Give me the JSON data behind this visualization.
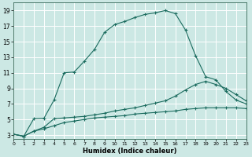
{
  "xlabel": "Humidex (Indice chaleur)",
  "bg_color": "#cce8e4",
  "grid_color": "#ffffff",
  "line_color": "#1a6b5e",
  "x_ticks": [
    0,
    1,
    2,
    3,
    4,
    5,
    6,
    7,
    8,
    9,
    10,
    11,
    12,
    13,
    14,
    15,
    16,
    17,
    18,
    19,
    20,
    21,
    22,
    23
  ],
  "y_ticks": [
    3,
    5,
    7,
    9,
    11,
    13,
    15,
    17,
    19
  ],
  "xlim": [
    0,
    23
  ],
  "ylim": [
    2.5,
    20.0
  ],
  "curve1_x": [
    0,
    1,
    2,
    3,
    4,
    5,
    6,
    7,
    8,
    9,
    10,
    11,
    12,
    13,
    14,
    15,
    16,
    17,
    18,
    19,
    20,
    21,
    22,
    23
  ],
  "curve1_y": [
    3.1,
    2.85,
    5.1,
    5.15,
    7.5,
    11.0,
    11.1,
    12.5,
    14.0,
    16.2,
    17.2,
    17.6,
    18.1,
    18.5,
    18.7,
    19.0,
    18.6,
    16.5,
    13.2,
    10.5,
    10.1,
    8.6,
    7.5,
    7.0
  ],
  "curve2_x": [
    0,
    1,
    2,
    3,
    4,
    5,
    6,
    7,
    8,
    9,
    10,
    11,
    12,
    13,
    14,
    15,
    16,
    17,
    18,
    19,
    20,
    21,
    22,
    23
  ],
  "curve2_y": [
    3.1,
    2.85,
    3.5,
    4.0,
    5.1,
    5.2,
    5.3,
    5.4,
    5.6,
    5.8,
    6.1,
    6.3,
    6.5,
    6.8,
    7.1,
    7.4,
    8.0,
    8.8,
    9.5,
    9.9,
    9.5,
    9.0,
    8.2,
    7.4
  ],
  "curve3_x": [
    0,
    1,
    2,
    3,
    4,
    5,
    6,
    7,
    8,
    9,
    10,
    11,
    12,
    13,
    14,
    15,
    16,
    17,
    18,
    19,
    20,
    21,
    22,
    23
  ],
  "curve3_y": [
    3.1,
    2.85,
    3.5,
    3.8,
    4.2,
    4.6,
    4.8,
    5.0,
    5.2,
    5.3,
    5.4,
    5.5,
    5.7,
    5.8,
    5.9,
    6.0,
    6.1,
    6.3,
    6.4,
    6.5,
    6.5,
    6.5,
    6.5,
    6.4
  ]
}
